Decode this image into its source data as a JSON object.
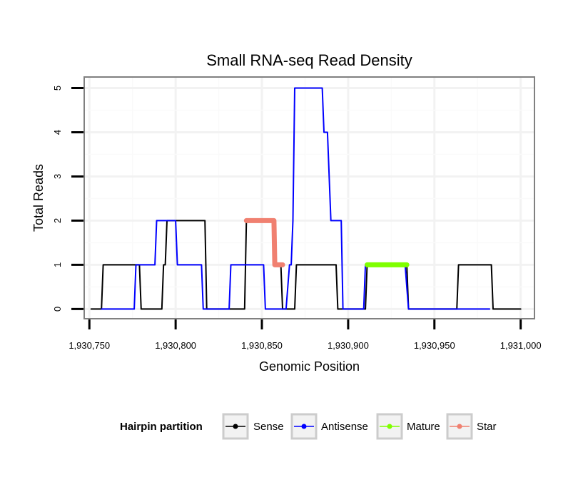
{
  "chart_data": {
    "type": "line",
    "title": "Small RNA-seq Read Density",
    "xlabel": "Genomic Position",
    "ylabel": "Total Reads",
    "xlim": [
      1930747,
      1931008
    ],
    "ylim": [
      -0.22,
      5.25
    ],
    "x_ticks": [
      1930750,
      1930800,
      1930850,
      1930900,
      1930950,
      1931000
    ],
    "x_tick_labels": [
      "1,930,750",
      "1,930,800",
      "1,930,850",
      "1,930,900",
      "1,930,950",
      "1,931,000"
    ],
    "y_ticks": [
      0,
      1,
      2,
      3,
      4,
      5
    ],
    "y_tick_labels": [
      "0",
      "1",
      "2",
      "3",
      "4",
      "5"
    ],
    "grid": true,
    "legend": {
      "title": "Hairpin partition",
      "position": "bottom",
      "entries": [
        "Sense",
        "Antisense",
        "Mature",
        "Star"
      ]
    },
    "series": [
      {
        "name": "Sense",
        "color": "#000000",
        "width": 2,
        "points": [
          [
            1930751,
            0
          ],
          [
            1930757,
            0
          ],
          [
            1930758,
            1
          ],
          [
            1930779,
            1
          ],
          [
            1930780,
            0
          ],
          [
            1930792,
            0
          ],
          [
            1930793,
            1
          ],
          [
            1930794,
            1
          ],
          [
            1930795,
            2
          ],
          [
            1930817,
            2
          ],
          [
            1930818,
            0
          ],
          [
            1930832,
            0
          ],
          [
            1930833,
            0
          ],
          [
            1930840,
            0
          ],
          [
            1930841,
            2
          ],
          [
            1930857,
            2
          ],
          [
            1930858,
            1
          ],
          [
            1930861,
            1
          ],
          [
            1930862,
            0
          ],
          [
            1930869,
            0
          ],
          [
            1930870,
            1
          ],
          [
            1930893,
            1
          ],
          [
            1930894,
            0
          ],
          [
            1930910,
            0
          ],
          [
            1930911,
            1
          ],
          [
            1930934,
            1
          ],
          [
            1930935,
            0
          ],
          [
            1930963,
            0
          ],
          [
            1930964,
            1
          ],
          [
            1930983,
            1
          ],
          [
            1930984,
            0
          ],
          [
            1931000,
            0
          ]
        ]
      },
      {
        "name": "Antisense",
        "color": "#0000ff",
        "width": 2,
        "points": [
          [
            1930757,
            0
          ],
          [
            1930776,
            0
          ],
          [
            1930777,
            1
          ],
          [
            1930788,
            1
          ],
          [
            1930789,
            2
          ],
          [
            1930800,
            2
          ],
          [
            1930801,
            1
          ],
          [
            1930815,
            1
          ],
          [
            1930816,
            0
          ],
          [
            1930831,
            0
          ],
          [
            1930832,
            1
          ],
          [
            1930851,
            1
          ],
          [
            1930852,
            0
          ],
          [
            1930864,
            0
          ],
          [
            1930866,
            1
          ],
          [
            1930867,
            1
          ],
          [
            1930868,
            2
          ],
          [
            1930869,
            5
          ],
          [
            1930885,
            5
          ],
          [
            1930886,
            4
          ],
          [
            1930888,
            4
          ],
          [
            1930890,
            2
          ],
          [
            1930896,
            2
          ],
          [
            1930897,
            0
          ],
          [
            1930909,
            0
          ],
          [
            1930910,
            1
          ],
          [
            1930933,
            1
          ],
          [
            1930935,
            0
          ],
          [
            1930982,
            0
          ]
        ]
      },
      {
        "name": "Mature",
        "color": "#7fff00",
        "width": 7,
        "points": [
          [
            1930911,
            1
          ],
          [
            1930934,
            1
          ]
        ]
      },
      {
        "name": "Star",
        "color": "#f08070",
        "width": 7,
        "points": [
          [
            1930841,
            2
          ],
          [
            1930857,
            2
          ],
          [
            1930857.5,
            1
          ],
          [
            1930862,
            1
          ]
        ]
      }
    ]
  }
}
